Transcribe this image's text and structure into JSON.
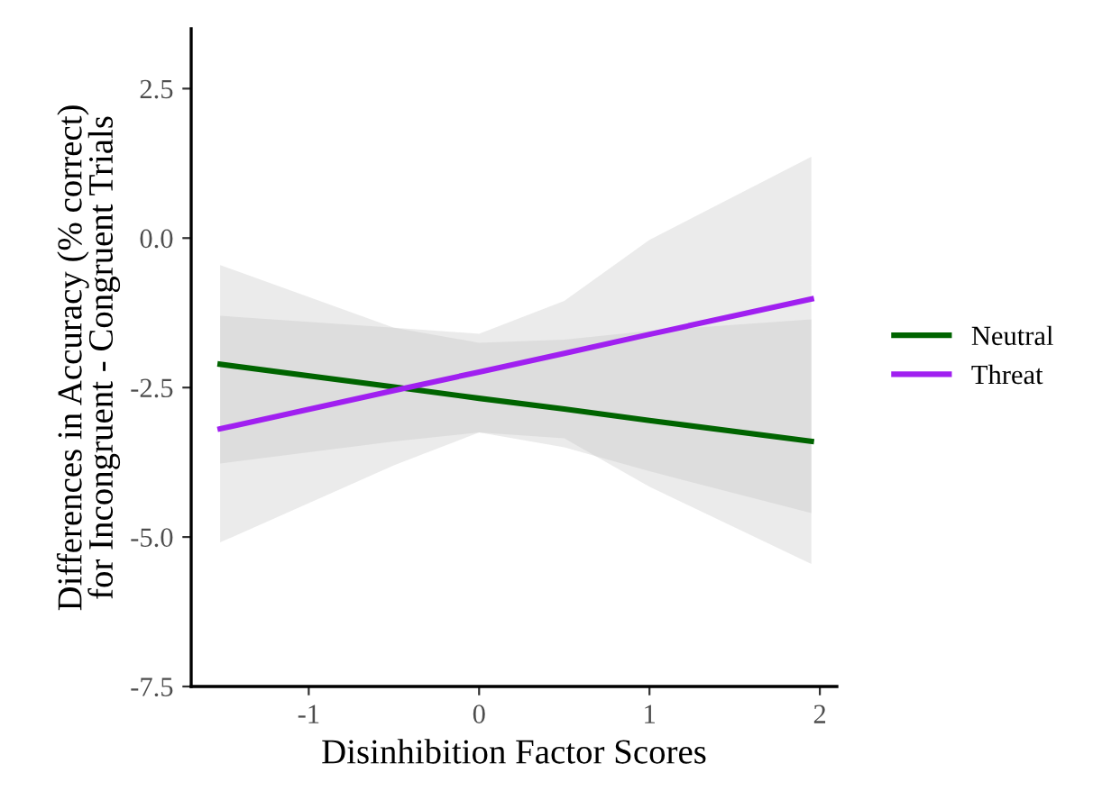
{
  "chart_data": {
    "type": "line",
    "xlabel": "Disinhibition Factor Scores",
    "ylabel": "Differences in Accuracy (% correct)\nfor Incongruent - Congruent Trials",
    "x": [
      -1.52,
      -0.5,
      0,
      0.5,
      1,
      1.95
    ],
    "series": [
      {
        "name": "Neutral",
        "color": "#006400",
        "values": [
          -2.11,
          -2.49,
          -2.68,
          -2.86,
          -3.05,
          -3.4
        ],
        "lower": [
          -3.77,
          -3.4,
          -3.25,
          -3.5,
          -3.9,
          -4.6
        ],
        "upper": [
          -1.3,
          -1.5,
          -1.75,
          -1.7,
          -1.55,
          -1.36
        ]
      },
      {
        "name": "Threat",
        "color": "#a020f0",
        "values": [
          -3.19,
          -2.55,
          -2.24,
          -1.93,
          -1.61,
          -1.02
        ],
        "lower": [
          -5.09,
          -3.8,
          -3.25,
          -3.35,
          -4.16,
          -5.45
        ],
        "upper": [
          -0.45,
          -1.5,
          -1.6,
          -1.05,
          -0.03,
          1.36
        ]
      }
    ],
    "xlim": [
      -1.69,
      2.1
    ],
    "ylim": [
      -7.5,
      3.5
    ],
    "xticks": [
      -1,
      0,
      1,
      2
    ],
    "yticks": [
      {
        "value": 2.5,
        "label": "2.5"
      },
      {
        "value": 0,
        "label": "0.0"
      },
      {
        "value": -2.5,
        "label": "-2.5"
      },
      {
        "value": -5,
        "label": "-5.0"
      },
      {
        "value": -7.5,
        "label": "-7.5"
      }
    ],
    "grid": false,
    "legend": "right",
    "line_style": "solid",
    "marker": "none"
  }
}
